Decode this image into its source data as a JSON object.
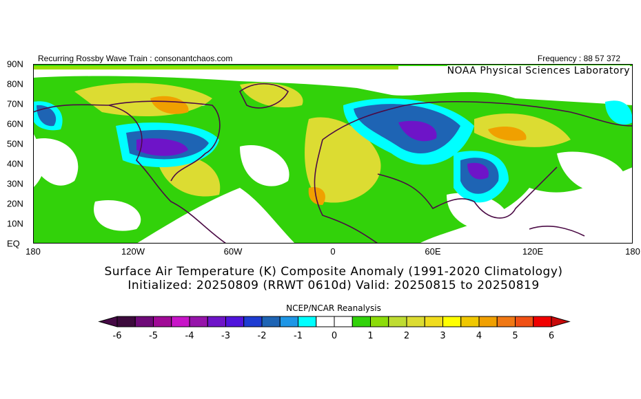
{
  "header": {
    "left": "Recurring Rossby Wave Train : consonantchaos.com",
    "right": "Frequency : 88 57 372",
    "watermark": "NOAA Physical Sciences Laboratory"
  },
  "map": {
    "lat_labels": [
      "90N",
      "80N",
      "70N",
      "60N",
      "50N",
      "40N",
      "30N",
      "20N",
      "10N",
      "EQ"
    ],
    "lon_labels": [
      "180",
      "120W",
      "60W",
      "0",
      "60E",
      "120E",
      "180"
    ],
    "coastline_color": "#4b0b45"
  },
  "title": {
    "line1": "Surface Air Temperature (K) Composite Anomaly (1991-2020 Climatology)",
    "line2": "Initialized: 20250809 (RRWT 0610d) Valid: 20250815 to 20250819"
  },
  "colorbar": {
    "title": "NCEP/NCAR Reanalysis",
    "min": -6,
    "max": 6,
    "step": 0.5,
    "labels": [
      "-6",
      "-5",
      "-4",
      "-3",
      "-2",
      "-1",
      "0",
      "1",
      "2",
      "3",
      "4",
      "5",
      "6"
    ],
    "colors": [
      "#3c0a3c",
      "#6e0a78",
      "#a00a96",
      "#c814c8",
      "#9614aa",
      "#6e14c8",
      "#5014dc",
      "#1e3cd2",
      "#1e64b4",
      "#1e96e6",
      "#00ffff",
      "#ffffff",
      "#ffffff",
      "#32d20a",
      "#8cdc0a",
      "#bedc32",
      "#dcdc32",
      "#f0dc1e",
      "#ffff00",
      "#f0c800",
      "#f0a000",
      "#f07814",
      "#f05014",
      "#f00000"
    ],
    "under_color": "#460a46",
    "over_color": "#c80a0a"
  }
}
